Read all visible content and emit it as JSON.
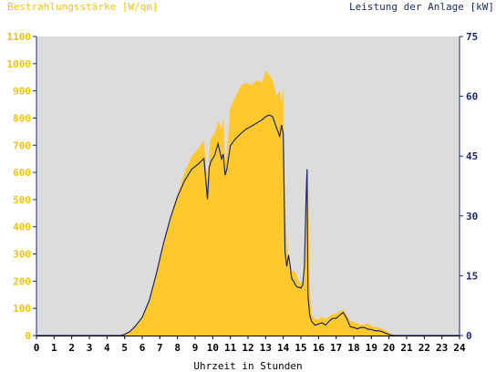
{
  "chart_data": {
    "type": "area",
    "left_axis_title": "Bestrahlungsstärke [W/qm]",
    "right_axis_title": "Leistung der Anlage [kW]",
    "xlabel": "Uhrzeit in Stunden",
    "xlim": [
      0,
      24
    ],
    "x_ticks": [
      "0",
      "1",
      "2",
      "3",
      "4",
      "5",
      "6",
      "7",
      "8",
      "9",
      "10",
      "11",
      "12",
      "13",
      "14",
      "15",
      "16",
      "17",
      "18",
      "19",
      "20",
      "21",
      "22",
      "23",
      "24"
    ],
    "left_ylim": [
      0,
      1100
    ],
    "left_y_ticks": [
      "0",
      "100",
      "200",
      "300",
      "400",
      "500",
      "600",
      "700",
      "800",
      "900",
      "1000",
      "1100"
    ],
    "right_ylim": [
      0,
      75
    ],
    "right_y_ticks": [
      "0",
      "15",
      "30",
      "45",
      "60",
      "75"
    ],
    "grid": false,
    "colors": {
      "irradiance": "#ffc82d",
      "power": "#1a2a6c",
      "plot_bg": "#dcdcdc",
      "left_axis": "#f5c400",
      "right_axis": "#1a2a6c"
    },
    "series": [
      {
        "name": "Bestrahlungsstärke",
        "axis": "left",
        "style": "area",
        "x": [
          0,
          4.8,
          5.0,
          5.3,
          5.6,
          6.0,
          6.4,
          6.8,
          7.2,
          7.6,
          8.0,
          8.4,
          8.8,
          9.2,
          9.5,
          9.7,
          9.8,
          9.85,
          9.9,
          10.1,
          10.3,
          10.5,
          10.6,
          10.7,
          10.8,
          11.0,
          11.3,
          11.6,
          11.9,
          12.2,
          12.5,
          12.8,
          13.0,
          13.2,
          13.4,
          13.6,
          13.8,
          13.9,
          14.0,
          14.1,
          14.2,
          14.3,
          14.4,
          14.45,
          14.5,
          14.6,
          14.7,
          14.8,
          14.9,
          15.0,
          15.1,
          15.2,
          15.3,
          15.35,
          15.4,
          15.5,
          15.6,
          15.8,
          16.0,
          16.2,
          16.4,
          16.6,
          16.8,
          17.0,
          17.2,
          17.4,
          17.6,
          17.8,
          18.0,
          18.2,
          18.4,
          18.6,
          18.8,
          19.0,
          19.2,
          19.4,
          19.6,
          19.8,
          20.0,
          20.2,
          20.5,
          24
        ],
        "values": [
          0,
          0,
          5,
          15,
          35,
          70,
          130,
          230,
          340,
          440,
          520,
          600,
          660,
          690,
          720,
          560,
          680,
          700,
          730,
          740,
          790,
          760,
          800,
          640,
          670,
          840,
          880,
          920,
          930,
          920,
          940,
          930,
          975,
          960,
          940,
          880,
          900,
          860,
          910,
          500,
          360,
          270,
          240,
          230,
          235,
          240,
          230,
          210,
          200,
          190,
          200,
          210,
          350,
          560,
          620,
          180,
          80,
          60,
          60,
          70,
          60,
          70,
          80,
          80,
          90,
          95,
          75,
          55,
          50,
          45,
          40,
          40,
          45,
          35,
          30,
          30,
          25,
          20,
          10,
          5,
          0,
          0
        ]
      },
      {
        "name": "Leistung der Anlage",
        "axis": "right",
        "style": "line",
        "x": [
          0,
          4.8,
          5.0,
          5.3,
          5.6,
          6.0,
          6.4,
          6.8,
          7.2,
          7.6,
          8.0,
          8.4,
          8.8,
          9.2,
          9.5,
          9.7,
          9.8,
          9.85,
          9.9,
          10.1,
          10.3,
          10.5,
          10.6,
          10.7,
          10.8,
          11.0,
          11.3,
          11.6,
          11.9,
          12.2,
          12.5,
          12.8,
          13.0,
          13.2,
          13.4,
          13.6,
          13.8,
          13.9,
          14.0,
          14.1,
          14.2,
          14.3,
          14.4,
          14.45,
          14.5,
          14.6,
          14.7,
          14.8,
          14.9,
          15.0,
          15.1,
          15.2,
          15.3,
          15.35,
          15.4,
          15.5,
          15.6,
          15.8,
          16.0,
          16.2,
          16.4,
          16.6,
          16.8,
          17.0,
          17.2,
          17.4,
          17.6,
          17.8,
          18.0,
          18.2,
          18.4,
          18.6,
          18.8,
          19.0,
          19.2,
          19.4,
          19.6,
          19.8,
          20.0,
          20.2,
          20.5,
          24
        ],
        "values": [
          0,
          0,
          0.3,
          1,
          2.3,
          4.6,
          8.8,
          15.5,
          23,
          29.5,
          34.8,
          38.8,
          41.7,
          43.1,
          44.4,
          34.2,
          42.2,
          42.8,
          43.7,
          45.1,
          48.1,
          44.3,
          45.5,
          40.2,
          41.7,
          47.6,
          49.4,
          50.7,
          51.8,
          52.5,
          53.3,
          54.1,
          54.9,
          55.3,
          54.9,
          52.3,
          50,
          52.8,
          50.5,
          20.9,
          17.3,
          20.2,
          17.3,
          15.1,
          14.1,
          13.6,
          12.6,
          12.1,
          12.1,
          11.9,
          12.6,
          17.3,
          35.5,
          41.7,
          10.1,
          5.1,
          3.6,
          2.6,
          2.9,
          3.2,
          2.6,
          3.6,
          4.3,
          4.3,
          5.1,
          5.8,
          4.3,
          2.2,
          2,
          1.7,
          2,
          2,
          1.6,
          1.5,
          1.2,
          1.2,
          1,
          0.6,
          0.3,
          0,
          0,
          0
        ]
      }
    ]
  }
}
